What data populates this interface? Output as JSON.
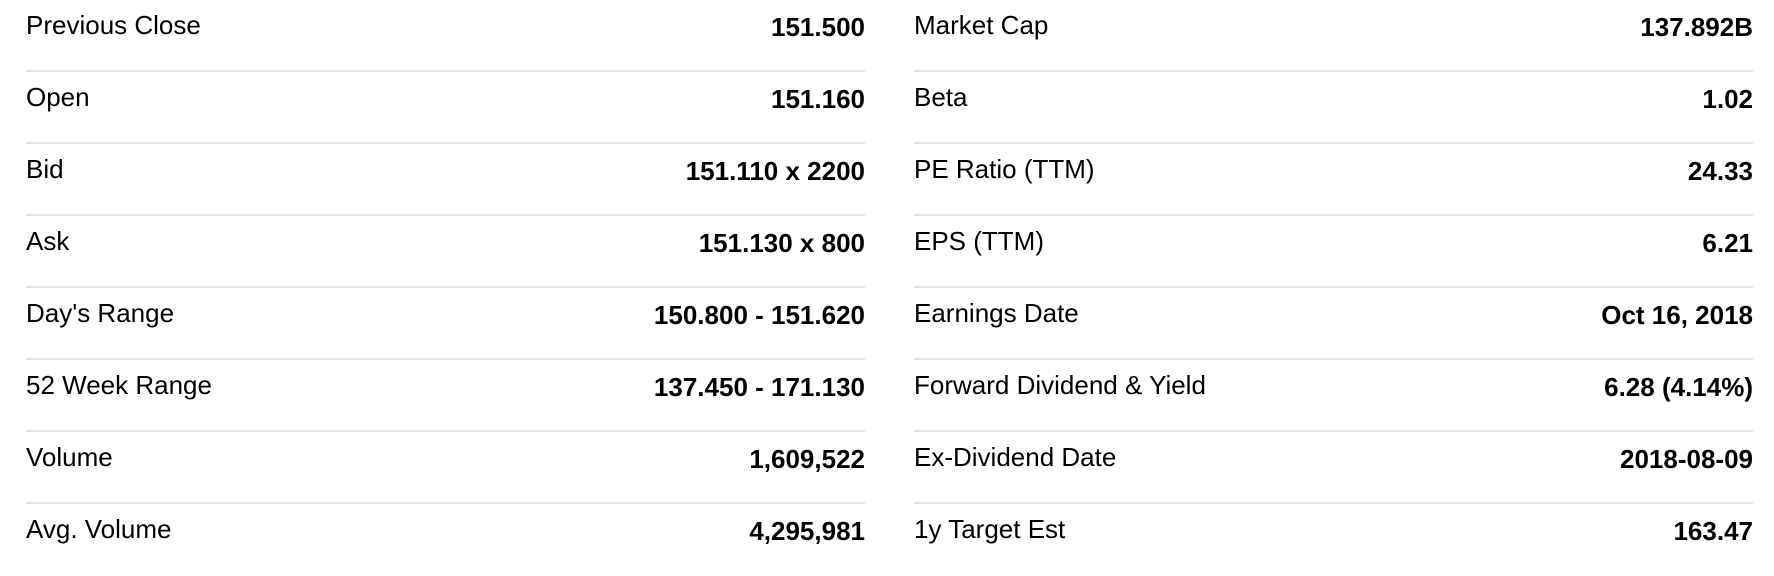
{
  "summary": {
    "left": [
      {
        "label": "Previous Close",
        "value": "151.500"
      },
      {
        "label": "Open",
        "value": "151.160"
      },
      {
        "label": "Bid",
        "value": "151.110 x 2200"
      },
      {
        "label": "Ask",
        "value": "151.130 x 800"
      },
      {
        "label": "Day's Range",
        "value": "150.800 - 151.620"
      },
      {
        "label": "52 Week Range",
        "value": "137.450 - 171.130"
      },
      {
        "label": "Volume",
        "value": "1,609,522"
      },
      {
        "label": "Avg. Volume",
        "value": "4,295,981"
      }
    ],
    "right": [
      {
        "label": "Market Cap",
        "value": "137.892B"
      },
      {
        "label": "Beta",
        "value": "1.02"
      },
      {
        "label": "PE Ratio (TTM)",
        "value": "24.33"
      },
      {
        "label": "EPS (TTM)",
        "value": "6.21"
      },
      {
        "label": "Earnings Date",
        "value": "Oct 16, 2018"
      },
      {
        "label": "Forward Dividend & Yield",
        "value": "6.28 (4.14%)"
      },
      {
        "label": "Ex-Dividend Date",
        "value": "2018-08-09"
      },
      {
        "label": "1y Target Est",
        "value": "163.47"
      }
    ]
  }
}
